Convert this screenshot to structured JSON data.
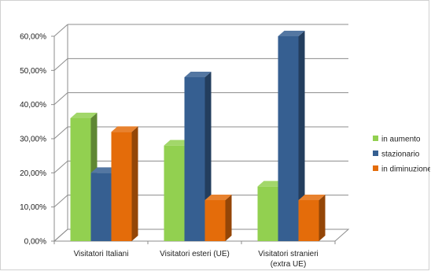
{
  "chart_data": {
    "type": "bar",
    "categories": [
      [
        "Visitatori Italiani"
      ],
      [
        "Visitatori esteri (UE)"
      ],
      [
        "Visitatori stranieri",
        "(extra UE)"
      ]
    ],
    "series": [
      {
        "name": "in aumento",
        "values": [
          36,
          28,
          16
        ],
        "color": "#92d050"
      },
      {
        "name": "stazionario",
        "values": [
          20,
          48,
          60
        ],
        "color": "#365f91"
      },
      {
        "name": "in diminuzione",
        "values": [
          32,
          12,
          12
        ],
        "color": "#e46c0a"
      }
    ],
    "y_ticks": [
      "0,00%",
      "10,00%",
      "20,00%",
      "30,00%",
      "40,00%",
      "50,00%",
      "60,00%"
    ],
    "ylim": [
      0,
      60
    ],
    "grid": true,
    "legend_position": "right",
    "title": "",
    "xlabel": "",
    "ylabel": ""
  }
}
